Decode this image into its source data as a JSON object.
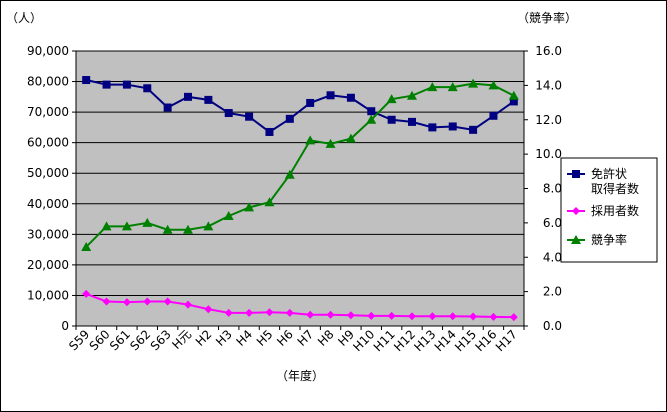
{
  "chart_data": {
    "type": "line",
    "ylabel_left": "（人）",
    "ylabel_right": "（競争率）",
    "xlabel": "（年度）",
    "categories": [
      "S59",
      "S60",
      "S61",
      "S62",
      "S63",
      "H元",
      "H2",
      "H3",
      "H4",
      "H5",
      "H6",
      "H7",
      "H8",
      "H9",
      "H10",
      "H11",
      "H12",
      "H13",
      "H14",
      "H15",
      "H16",
      "H17"
    ],
    "yticks_left": [
      "0",
      "10,000",
      "20,000",
      "30,000",
      "40,000",
      "50,000",
      "60,000",
      "70,000",
      "80,000",
      "90,000"
    ],
    "yticks_right": [
      "0.0",
      "2.0",
      "4.0",
      "6.0",
      "8.0",
      "10.0",
      "12.0",
      "14.0",
      "16.0"
    ],
    "ylim_left": [
      0,
      90000
    ],
    "ylim_right": [
      0,
      16
    ],
    "grid": true,
    "plot_background": "#c0c0c0",
    "legend_position": "right",
    "series": [
      {
        "name": "免許状取得者数",
        "legend_lines": [
          "免許状",
          "取得者数"
        ],
        "axis": "left",
        "color": "#000080",
        "marker": "square",
        "values": [
          80500,
          79000,
          79000,
          77800,
          71500,
          75000,
          74000,
          69700,
          68500,
          63500,
          67800,
          73000,
          75500,
          74700,
          70300,
          67500,
          66800,
          65000,
          65300,
          64200,
          68800,
          73500
        ]
      },
      {
        "name": "採用者数",
        "legend_lines": [
          "採用者数"
        ],
        "axis": "left",
        "color": "#ff00ff",
        "marker": "diamond",
        "values": [
          10500,
          8000,
          7800,
          8000,
          8000,
          7000,
          5500,
          4300,
          4300,
          4500,
          4300,
          3700,
          3700,
          3500,
          3300,
          3300,
          3200,
          3200,
          3200,
          3100,
          3000,
          2900
        ]
      },
      {
        "name": "競争率",
        "legend_lines": [
          "競争率"
        ],
        "axis": "right",
        "color": "#008000",
        "marker": "triangle",
        "values": [
          4.6,
          5.8,
          5.8,
          6.0,
          5.6,
          5.6,
          5.8,
          6.4,
          6.9,
          7.2,
          8.8,
          10.8,
          10.6,
          10.9,
          12.0,
          13.2,
          13.4,
          13.9,
          13.9,
          14.1,
          14.0,
          13.4
        ]
      }
    ]
  }
}
